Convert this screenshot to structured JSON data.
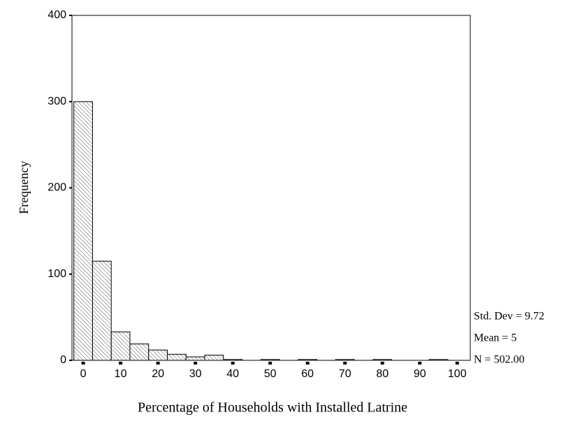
{
  "chart_data": {
    "type": "histogram",
    "x_label": "Percentage of Households with Installed Latrine",
    "y_label": "Frequency",
    "bins": [
      -2.5,
      2.5,
      7.5,
      12.5,
      17.5,
      22.5,
      27.5,
      32.5,
      37.5,
      42.5,
      47.5,
      52.5,
      57.5,
      62.5,
      67.5,
      72.5,
      77.5,
      82.5,
      87.5,
      92.5,
      97.5,
      102.5
    ],
    "values": [
      300,
      115,
      33,
      19,
      12,
      7,
      4,
      6,
      1,
      0,
      1,
      0,
      1,
      0,
      1,
      0,
      1,
      0,
      0,
      1,
      0
    ],
    "color": "#ffffff",
    "xlim": [
      -3,
      103.5
    ],
    "xticks": [
      0,
      10,
      20,
      30,
      40,
      50,
      60,
      70,
      80,
      90,
      100
    ],
    "ylim": [
      0,
      400
    ],
    "yticks": [
      0,
      100,
      200,
      300,
      400
    ],
    "grid": false,
    "annotations": [
      "Std. Dev = 9.72",
      "Mean = 5",
      "N = 502.00"
    ]
  }
}
